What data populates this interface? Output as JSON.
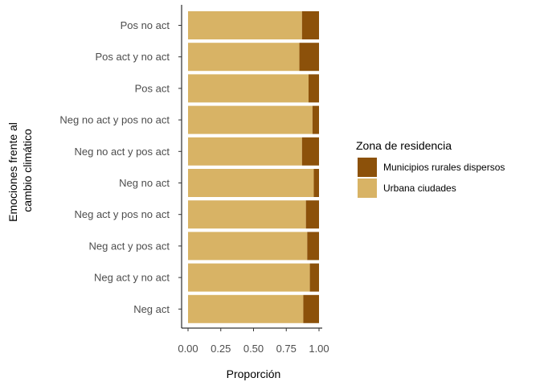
{
  "chart_data": {
    "type": "bar",
    "orientation": "horizontal",
    "stacked": "proportion",
    "categories": [
      "Pos no act",
      "Pos act y no act",
      "Pos act",
      "Neg no act y pos no act",
      "Neg no act y pos act",
      "Neg no act",
      "Neg act y pos no act",
      "Neg act y pos act",
      "Neg act y no act",
      "Neg act"
    ],
    "series": [
      {
        "name": "Urbana ciudades",
        "color": "#D8B365",
        "values": [
          0.87,
          0.85,
          0.92,
          0.95,
          0.87,
          0.96,
          0.9,
          0.91,
          0.93,
          0.88
        ]
      },
      {
        "name": "Municipios rurales dispersos",
        "color": "#8C510A",
        "values": [
          0.13,
          0.15,
          0.08,
          0.05,
          0.13,
          0.04,
          0.1,
          0.09,
          0.07,
          0.12
        ]
      }
    ],
    "xlabel": "Proporción",
    "ylabel_lines": [
      "Emociones frente al",
      "cambio climático"
    ],
    "xticks": [
      "0.00",
      "0.25",
      "0.50",
      "0.75",
      "1.00"
    ],
    "xlim": [
      0,
      1
    ],
    "grid": false,
    "legend": {
      "title": "Zona de residencia",
      "position": "right",
      "items": [
        {
          "label": "Municipios rurales dispersos",
          "color": "#8C510A"
        },
        {
          "label": "Urbana ciudades",
          "color": "#D8B365"
        }
      ]
    }
  }
}
